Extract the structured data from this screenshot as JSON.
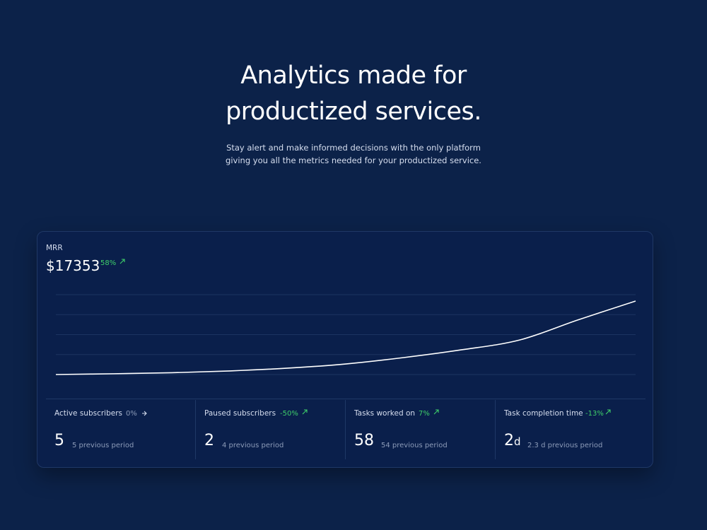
{
  "header": {
    "title_lines": [
      "Analytics made for",
      "productized services."
    ],
    "subtitle_lines": [
      "Stay alert and make informed decisions with the only platform",
      "giving you all the metrics needed for your productized service."
    ]
  },
  "card": {
    "label": "MRR",
    "value": "$17353",
    "change": "58%",
    "chart_data": {
      "type": "line",
      "x": [
        0,
        1,
        2,
        3,
        4,
        5,
        6,
        7,
        8,
        9,
        10
      ],
      "series": [
        {
          "color": "#ffffff",
          "values": [
            0,
            0.04,
            0.09,
            0.18,
            0.32,
            0.53,
            0.85,
            1.24,
            1.73,
            2.73,
            3.68
          ]
        }
      ],
      "xlim": [
        0,
        10
      ],
      "ylim": [
        0,
        4
      ],
      "yticks": [
        0,
        1,
        2,
        3,
        4
      ],
      "grid": true
    }
  },
  "stats": [
    {
      "label": "Active subscribers",
      "change": "0%",
      "value": "5",
      "previous": "5 previous period"
    },
    {
      "label": "Paused subscribers",
      "change": "-50%",
      "value": "2",
      "previous": "4 previous period"
    },
    {
      "label": "Tasks worked on",
      "change": "7%",
      "value": "58",
      "previous": "54 previous period"
    },
    {
      "label": "Task completion time",
      "change": "-13%",
      "value": "2",
      "unit": "d",
      "previous": "2.3 d previous period"
    }
  ]
}
